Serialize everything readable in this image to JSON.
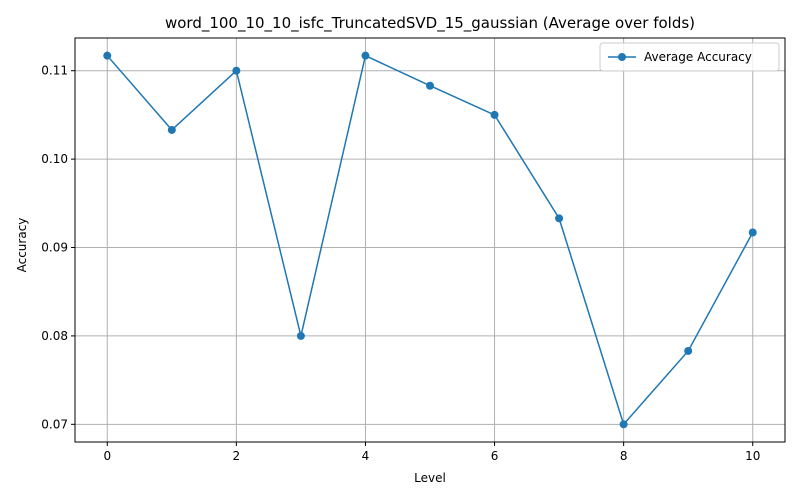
{
  "chart_data": {
    "type": "line",
    "title": "word_100_10_10_isfc_TruncatedSVD_15_gaussian (Average over folds)",
    "xlabel": "Level",
    "ylabel": "Accuracy",
    "xlim": [
      -0.5,
      10.5
    ],
    "ylim": [
      0.068,
      0.1137
    ],
    "xticks": [
      0,
      2,
      4,
      6,
      8,
      10
    ],
    "xtick_labels": [
      "0",
      "2",
      "4",
      "6",
      "8",
      "10"
    ],
    "yticks": [
      0.07,
      0.08,
      0.09,
      0.1,
      0.11
    ],
    "ytick_labels": [
      "0.07",
      "0.08",
      "0.09",
      "0.10",
      "0.11"
    ],
    "grid": true,
    "legend_position": "top-right",
    "series": [
      {
        "name": "Average Accuracy",
        "color": "#1f77b4",
        "marker": "circle",
        "x": [
          0,
          1,
          2,
          3,
          4,
          5,
          6,
          7,
          8,
          9,
          10
        ],
        "y": [
          0.1117,
          0.1033,
          0.11,
          0.08,
          0.1117,
          0.1083,
          0.105,
          0.0933,
          0.07,
          0.0783,
          0.0917
        ]
      }
    ]
  }
}
